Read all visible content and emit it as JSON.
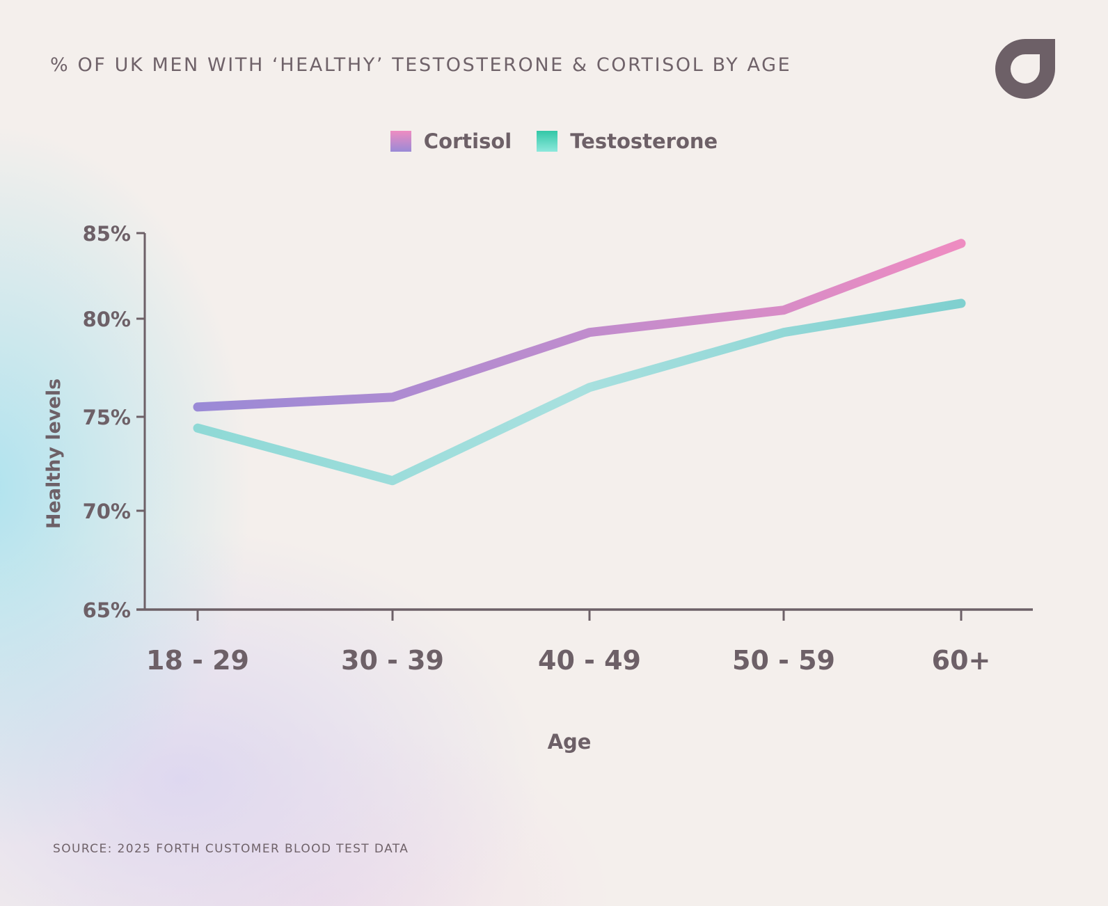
{
  "title": "% OF UK MEN WITH ‘HEALTHY’ TESTOSTERONE & CORTISOL BY AGE",
  "logo": {
    "icon": "forth-logo-icon",
    "color": "#6d6067"
  },
  "source": "SOURCE: 2025 FORTH CUSTOMER BLOOD TEST DATA",
  "legend": [
    {
      "label": "Cortisol",
      "color_top": "#ee8cc1",
      "color_bottom": "#9a8ad6"
    },
    {
      "label": "Testosterone",
      "color_top": "#33c7a6",
      "color_bottom": "#8de8dc"
    }
  ],
  "chart_data": {
    "type": "line",
    "title": "% OF UK MEN WITH ‘HEALTHY’ TESTOSTERONE & CORTISOL BY AGE",
    "xlabel": "Age",
    "ylabel": "Healthy levels",
    "categories": [
      "18 - 29",
      "30 - 39",
      "40 - 49",
      "50 - 59",
      "60+"
    ],
    "yticks": [
      85,
      80,
      75,
      70,
      65
    ],
    "ytick_labels": [
      "85%",
      "80%",
      "75%",
      "70%",
      "65%"
    ],
    "ylim": [
      65,
      85
    ],
    "grid": false,
    "legend_position": "top-center",
    "series": [
      {
        "name": "Cortisol",
        "values": [
          75.5,
          76.0,
          79.3,
          80.5,
          84.4
        ],
        "colors": [
          "#9a8ad6",
          "#bf8ccd",
          "#ee8cc1"
        ]
      },
      {
        "name": "Testosterone",
        "values": [
          74.4,
          71.6,
          76.5,
          79.3,
          80.9
        ],
        "colors": [
          "#8fd9d6",
          "#a8e0df",
          "#7fd0cf"
        ]
      }
    ]
  }
}
